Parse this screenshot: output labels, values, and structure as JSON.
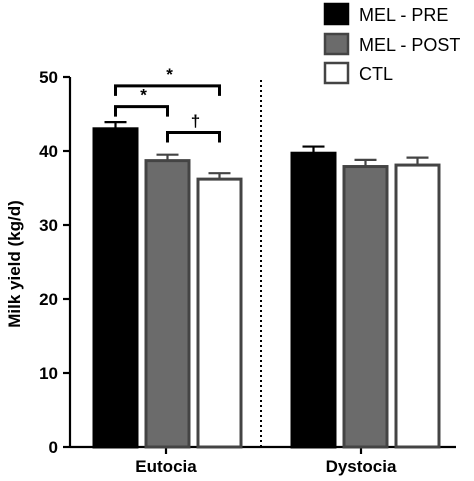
{
  "chart_data": {
    "type": "bar",
    "ylabel": "Milk yield (kg/d)",
    "ylim": [
      0,
      50
    ],
    "yticks": [
      0,
      10,
      20,
      30,
      40,
      50
    ],
    "categories": [
      "Eutocia",
      "Dystocia"
    ],
    "legend_position": "top-right",
    "series": [
      {
        "name": "MEL - PRE",
        "color": "#000000",
        "values": [
          43.0,
          39.7
        ],
        "errors": [
          0.9,
          0.9
        ]
      },
      {
        "name": "MEL - POST",
        "color": "#6b6b6b",
        "values": [
          38.7,
          37.9
        ],
        "errors": [
          0.8,
          0.9
        ]
      },
      {
        "name": "CTL",
        "color": "#ffffff",
        "values": [
          36.2,
          38.1
        ],
        "errors": [
          0.8,
          1.0
        ]
      }
    ],
    "significance": [
      {
        "category": 0,
        "from_series": 0,
        "to_series": 2,
        "level": 48.8,
        "label": "*"
      },
      {
        "category": 0,
        "from_series": 0,
        "to_series": 1,
        "level": 46.0,
        "label": "*"
      },
      {
        "category": 0,
        "from_series": 1,
        "to_series": 2,
        "level": 42.5,
        "label": "†"
      }
    ],
    "divider": "between-categories"
  }
}
